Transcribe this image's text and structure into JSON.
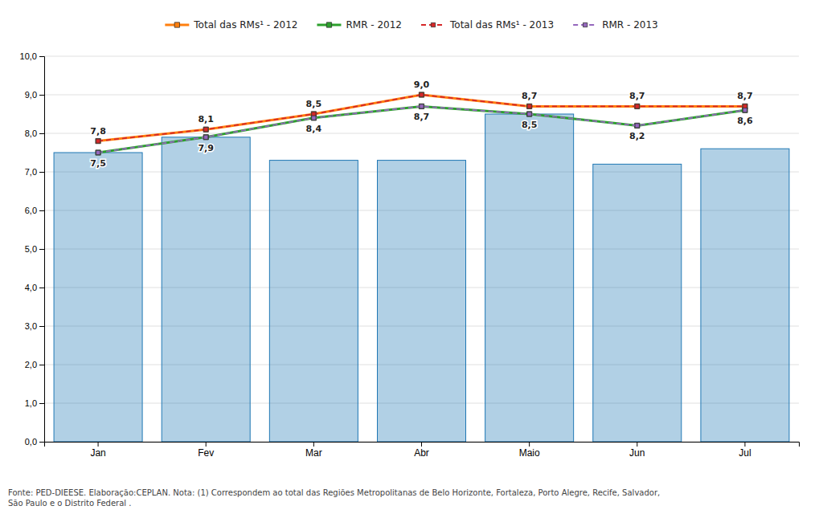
{
  "chart_data": {
    "type": "bar",
    "categories": [
      "Jan",
      "Fev",
      "Mar",
      "Abr",
      "Maio",
      "Jun",
      "Jul"
    ],
    "series": [
      {
        "type": "bar",
        "values": [
          7.5,
          7.9,
          7.3,
          7.3,
          8.5,
          7.2,
          7.6
        ]
      },
      {
        "type": "line",
        "name": "Total das RMs¹ - 2012",
        "line_style": "solid",
        "marker": "square",
        "values": [
          7.8,
          8.1,
          8.5,
          9.0,
          8.7,
          8.7,
          8.7
        ],
        "data_labels": true,
        "value_labels": [
          "7,8",
          "8,1",
          "8,5",
          "9,0",
          "8,7",
          "8,7",
          "8,7"
        ]
      },
      {
        "type": "line",
        "name": "RMR - 2012",
        "line_style": "solid",
        "marker": "square",
        "values": [
          7.5,
          7.9,
          8.4,
          8.7,
          8.5,
          8.2,
          8.6
        ],
        "data_labels": true,
        "value_labels": [
          "7,5",
          "7,9",
          "8,4",
          "8,7",
          "8,5",
          "8,2",
          "8,6"
        ]
      },
      {
        "type": "line",
        "name": "Total das RMs¹ - 2013",
        "line_style": "dashed",
        "marker": "square",
        "values": [
          7.8,
          8.1,
          8.5,
          9.0,
          8.7,
          8.7,
          8.7
        ]
      },
      {
        "type": "line",
        "name": "RMR - 2013",
        "line_style": "dashed",
        "marker": "square",
        "values": [
          7.5,
          7.9,
          8.4,
          8.7,
          8.5,
          8.2,
          8.6
        ]
      }
    ],
    "ylim": [
      0.0,
      10.0
    ],
    "yticks": [
      {
        "value": 0.0,
        "label": "0,0"
      },
      {
        "value": 1.0,
        "label": "1,0"
      },
      {
        "value": 2.0,
        "label": "2,0"
      },
      {
        "value": 3.0,
        "label": "3,0"
      },
      {
        "value": 4.0,
        "label": "4,0"
      },
      {
        "value": 5.0,
        "label": "5,0"
      },
      {
        "value": 6.0,
        "label": "6,0"
      },
      {
        "value": 7.0,
        "label": "7,0"
      },
      {
        "value": 8.0,
        "label": "8,0"
      },
      {
        "value": 9.0,
        "label": "9,0"
      },
      {
        "value": 10.0,
        "label": "10,0"
      }
    ],
    "grid": true,
    "legend": "top",
    "annotations": [
      {
        "text": "Fonte: PED-DIEESE. Elaboração:CEPLAN. Nota: (1) Correspondem ao total das Regiões Metropolitanas de Belo Horizonte, Fortaleza, Porto Alegre, Recife, Salvador,\nSão Paulo e o Distrito Federal ."
      }
    ]
  }
}
